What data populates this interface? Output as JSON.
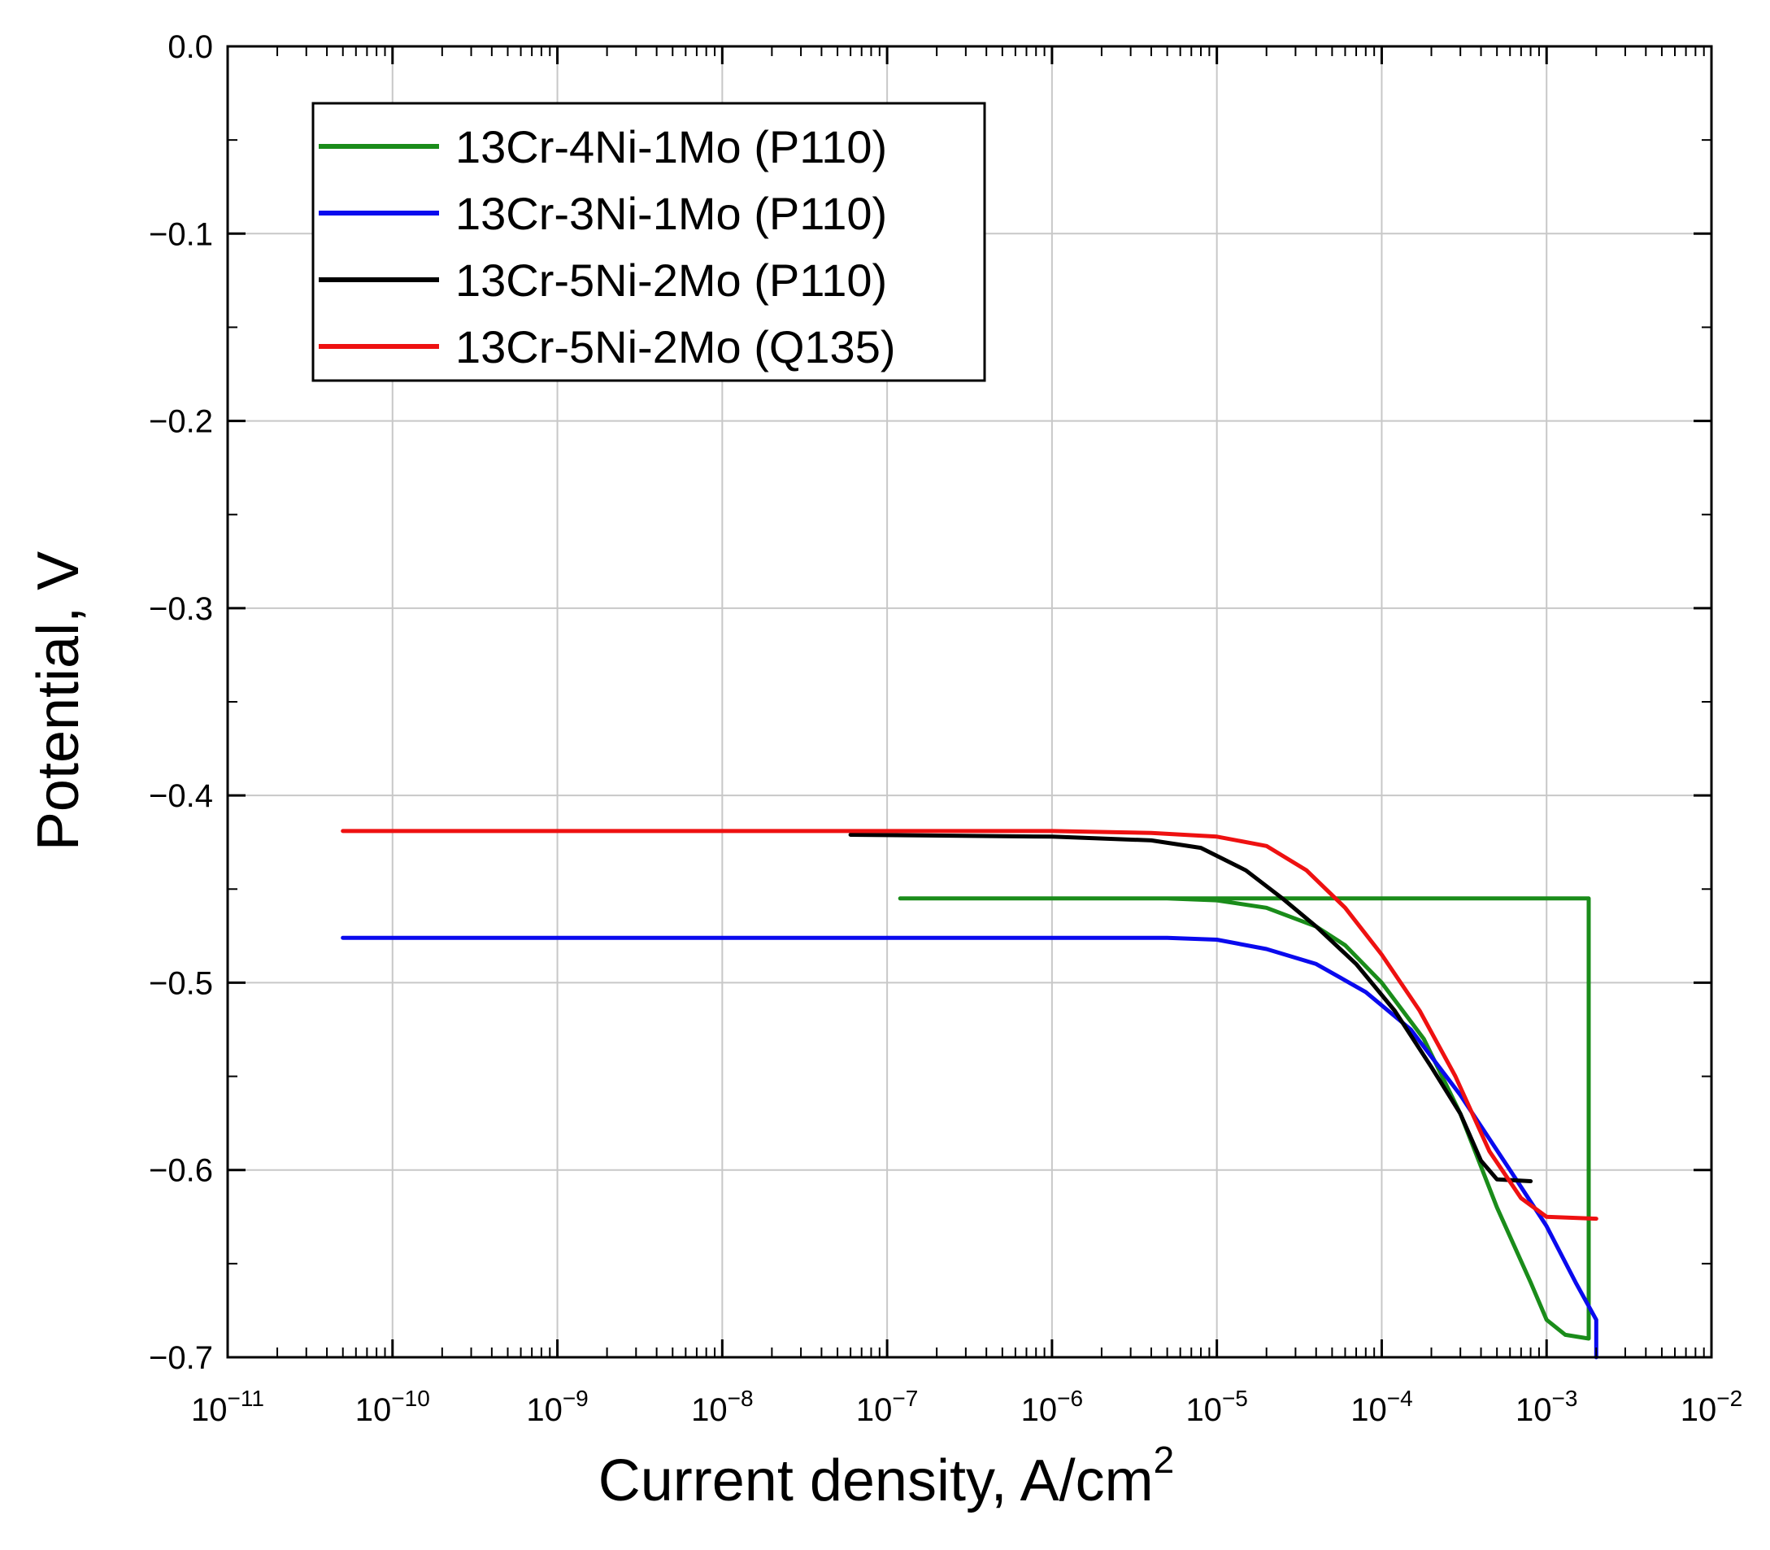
{
  "chart_data": {
    "type": "line",
    "title": "",
    "xlabel": "Current density, A/cm",
    "xlabel_superscript": "2",
    "ylabel": "Potential, V",
    "x_scale": "log",
    "xlim": [
      1e-11,
      0.01
    ],
    "ylim": [
      -0.7,
      0.0
    ],
    "grid": true,
    "legend_position": "top-left",
    "x_ticks": [
      {
        "base": "10",
        "exp": "−11"
      },
      {
        "base": "10",
        "exp": "−10"
      },
      {
        "base": "10",
        "exp": "−9"
      },
      {
        "base": "10",
        "exp": "−8"
      },
      {
        "base": "10",
        "exp": "−7"
      },
      {
        "base": "10",
        "exp": "−6"
      },
      {
        "base": "10",
        "exp": "−5"
      },
      {
        "base": "10",
        "exp": "−4"
      },
      {
        "base": "10",
        "exp": "−3"
      },
      {
        "base": "10",
        "exp": "−2"
      }
    ],
    "y_ticks": [
      "0.0",
      "−0.1",
      "−0.2",
      "−0.3",
      "−0.4",
      "−0.5",
      "−0.6",
      "−0.7"
    ],
    "y_tick_values": [
      0.0,
      -0.1,
      -0.2,
      -0.3,
      -0.4,
      -0.5,
      -0.6,
      -0.7
    ],
    "series": [
      {
        "name": "13Cr-4Ni-1Mo (P110)",
        "color": "#1a8c1a",
        "points": [
          [
            1.2e-07,
            -0.455
          ],
          [
            1e-06,
            -0.455
          ],
          [
            5e-06,
            -0.455
          ],
          [
            1e-05,
            -0.456
          ],
          [
            2e-05,
            -0.46
          ],
          [
            4e-05,
            -0.47
          ],
          [
            6e-05,
            -0.48
          ],
          [
            0.0001,
            -0.5
          ],
          [
            0.00018,
            -0.53
          ],
          [
            0.0003,
            -0.57
          ],
          [
            0.0005,
            -0.62
          ],
          [
            0.0008,
            -0.66
          ],
          [
            0.001,
            -0.68
          ],
          [
            0.0013,
            -0.688
          ],
          [
            0.0018,
            -0.69
          ],
          [
            0.0018,
            -0.455
          ],
          [
            0.0015,
            -0.455
          ],
          [
            0.001,
            -0.455
          ],
          [
            0.0003,
            -0.455
          ],
          [
            8e-05,
            -0.455
          ],
          [
            3e-05,
            -0.455
          ],
          [
            1e-05,
            -0.455
          ],
          [
            3e-06,
            -0.455
          ],
          [
            1e-06,
            -0.455
          ]
        ]
      },
      {
        "name": "13Cr-3Ni-1Mo (P110)",
        "color": "#0a0aee",
        "points": [
          [
            5e-11,
            -0.476
          ],
          [
            1e-08,
            -0.476
          ],
          [
            1e-06,
            -0.476
          ],
          [
            5e-06,
            -0.476
          ],
          [
            1e-05,
            -0.477
          ],
          [
            2e-05,
            -0.482
          ],
          [
            4e-05,
            -0.49
          ],
          [
            8e-05,
            -0.505
          ],
          [
            0.00015,
            -0.525
          ],
          [
            0.0003,
            -0.56
          ],
          [
            0.0006,
            -0.6
          ],
          [
            0.001,
            -0.63
          ],
          [
            0.0015,
            -0.66
          ],
          [
            0.002,
            -0.68
          ],
          [
            0.002,
            -0.7
          ]
        ]
      },
      {
        "name": "13Cr-5Ni-2Mo (P110)",
        "color": "#000000",
        "points": [
          [
            6e-08,
            -0.421
          ],
          [
            1e-06,
            -0.422
          ],
          [
            4e-06,
            -0.424
          ],
          [
            8e-06,
            -0.428
          ],
          [
            1.5e-05,
            -0.44
          ],
          [
            2.5e-05,
            -0.455
          ],
          [
            4e-05,
            -0.47
          ],
          [
            7e-05,
            -0.49
          ],
          [
            0.00012,
            -0.515
          ],
          [
            0.0002,
            -0.545
          ],
          [
            0.0003,
            -0.57
          ],
          [
            0.0004,
            -0.595
          ],
          [
            0.0005,
            -0.605
          ],
          [
            0.0008,
            -0.606
          ]
        ]
      },
      {
        "name": "13Cr-5Ni-2Mo (Q135)",
        "color": "#ee1111",
        "points": [
          [
            5e-11,
            -0.419
          ],
          [
            1e-08,
            -0.419
          ],
          [
            1e-06,
            -0.419
          ],
          [
            4e-06,
            -0.42
          ],
          [
            1e-05,
            -0.422
          ],
          [
            2e-05,
            -0.427
          ],
          [
            3.5e-05,
            -0.44
          ],
          [
            6e-05,
            -0.46
          ],
          [
            0.0001,
            -0.485
          ],
          [
            0.00017,
            -0.515
          ],
          [
            0.00028,
            -0.55
          ],
          [
            0.00045,
            -0.59
          ],
          [
            0.0007,
            -0.615
          ],
          [
            0.001,
            -0.625
          ],
          [
            0.002,
            -0.626
          ]
        ]
      }
    ]
  }
}
